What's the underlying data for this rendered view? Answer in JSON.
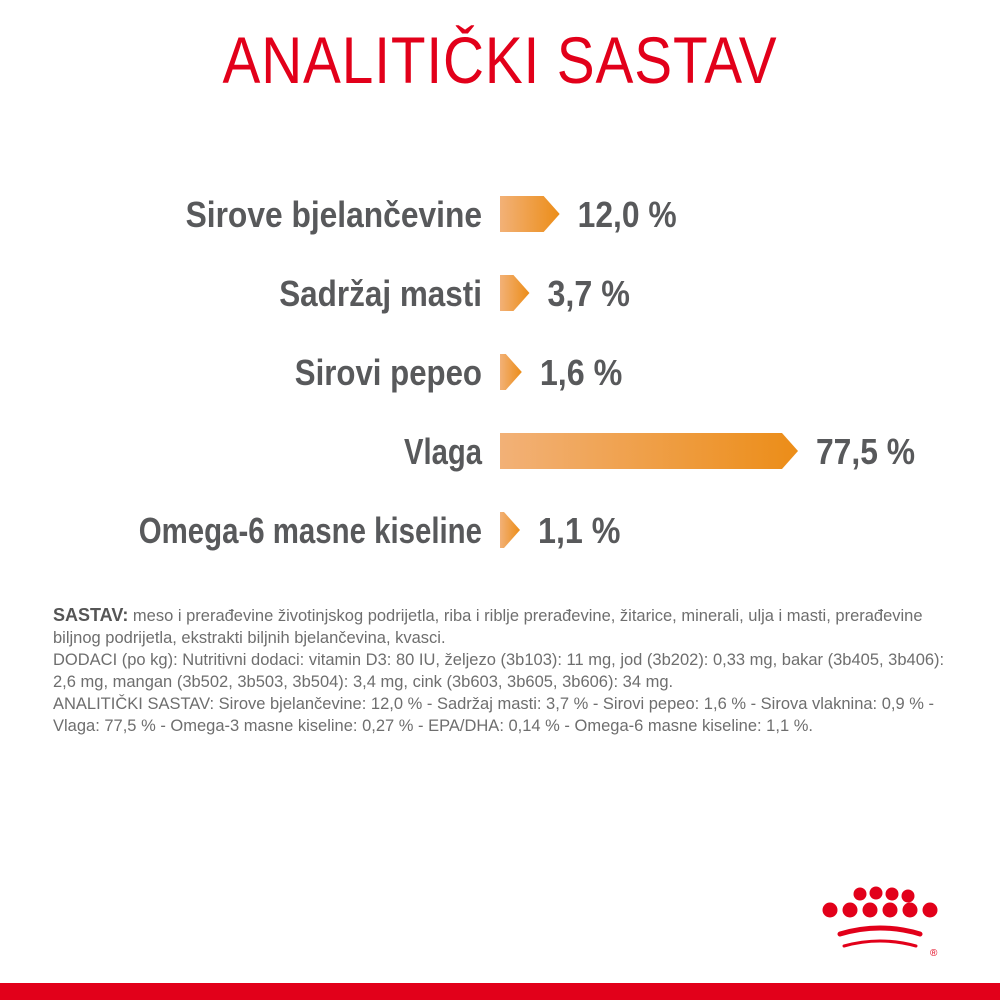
{
  "header": {
    "title": "ANALITIČKI SASTAV"
  },
  "colors": {
    "title": "#e2001a",
    "label": "#58595b",
    "bar_start": "#f2b177",
    "bar_end": "#ec8d18",
    "text": "#6e6e6e",
    "brand_red": "#e2001a"
  },
  "chart_data": {
    "type": "bar",
    "orientation": "horizontal",
    "categories": [
      "Sirove bjelančevine",
      "Sadržaj masti",
      "Sirovi pepeo",
      "Vlaga",
      "Omega-6 masne kiseline"
    ],
    "values": [
      12.0,
      3.7,
      1.6,
      77.5,
      1.1
    ],
    "value_labels": [
      "12,0 %",
      "3,7 %",
      "1,6 %",
      "77,5 %",
      "1,1 %"
    ],
    "unit": "%"
  },
  "composition": {
    "sastav_label": "SASTAV:",
    "sastav_text": " meso i prerađevine životinjskog podrijetla, riba i riblje prerađevine, žitarice, minerali, ulja i masti, prerađevine biljnog podrijetla, ekstrakti biljnih bjelančevina, kvasci.",
    "dodaci_text": "DODACI (po kg): Nutritivni dodaci: vitamin D3: 80 IU, željezo (3b103): 11 mg, jod (3b202): 0,33 mg, bakar (3b405, 3b406): 2,6 mg, mangan (3b502, 3b503, 3b504): 3,4 mg, cink (3b603, 3b605, 3b606): 34 mg.",
    "analiticki_text": "ANALITIČKI SASTAV: Sirove bjelančevine: 12,0 % - Sadržaj masti: 3,7 % - Sirovi pepeo: 1,6 % - Sirova vlaknina: 0,9 % - Vlaga: 77,5 % - Omega-3 masne kiseline: 0,27 % - EPA/DHA: 0,14 % - Omega-6 masne kiseline: 1,1 %."
  },
  "logo": {
    "name": "crown-logo-icon",
    "mark": "®"
  }
}
